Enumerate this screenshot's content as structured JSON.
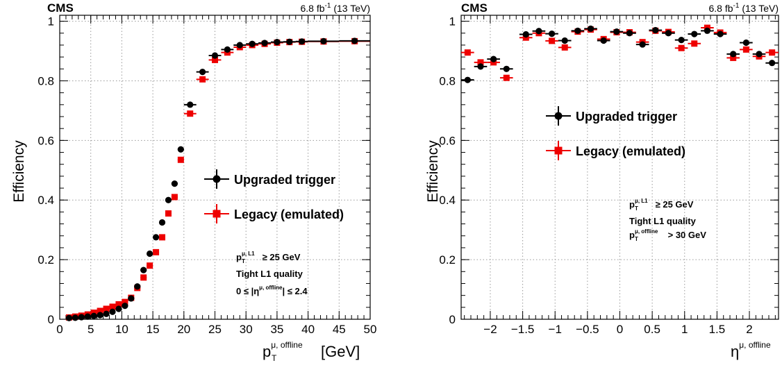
{
  "colors": {
    "upgraded": "#000000",
    "legacy": "#ee0000",
    "grid": "#999999",
    "frame": "#000000"
  },
  "chart_data": [
    {
      "type": "scatter",
      "experiment": "CMS",
      "lumi": "6.8 fb",
      "lumi_exp": "-1",
      "energy": "(13 TeV)",
      "xlabel": {
        "main": "p",
        "sup": "μ, offline",
        "sub": "T",
        "unit": "[GeV]"
      },
      "ylabel": "Efficiency",
      "xlim": [
        0,
        50
      ],
      "ylim": [
        0,
        1.02
      ],
      "xticks": [
        0,
        5,
        10,
        15,
        20,
        25,
        30,
        35,
        40,
        45,
        50
      ],
      "yticks": [
        0,
        0.2,
        0.4,
        0.6,
        0.8,
        1
      ],
      "ytick_labels": [
        "0",
        "0.2",
        "0.4",
        "0.6",
        "0.8",
        "1"
      ],
      "grid": true,
      "legend_position": "right-middle",
      "series": [
        {
          "name": "Upgraded trigger",
          "marker": "circle",
          "x": [
            1.5,
            2.5,
            3.5,
            4.5,
            5.5,
            6.5,
            7.5,
            8.5,
            9.5,
            10.5,
            11.5,
            12.5,
            13.5,
            14.5,
            15.5,
            16.5,
            17.5,
            18.5,
            19.5,
            21,
            23,
            25,
            27,
            29,
            31,
            33,
            35,
            37,
            39,
            42.5,
            47.5
          ],
          "xerr": [
            0.5,
            0.5,
            0.5,
            0.5,
            0.5,
            0.5,
            0.5,
            0.5,
            0.5,
            0.5,
            0.5,
            0.5,
            0.5,
            0.5,
            0.5,
            0.5,
            0.5,
            0.5,
            0.5,
            1,
            1,
            1,
            1,
            1,
            1,
            1,
            1,
            1,
            1,
            2.5,
            2.5
          ],
          "y": [
            0.004,
            0.005,
            0.007,
            0.009,
            0.011,
            0.014,
            0.018,
            0.025,
            0.035,
            0.045,
            0.07,
            0.11,
            0.165,
            0.22,
            0.275,
            0.325,
            0.4,
            0.455,
            0.57,
            0.72,
            0.83,
            0.885,
            0.905,
            0.92,
            0.924,
            0.927,
            0.93,
            0.931,
            0.932,
            0.933,
            0.934
          ]
        },
        {
          "name": "Legacy (emulated)",
          "marker": "square",
          "x": [
            1.5,
            2.5,
            3.5,
            4.5,
            5.5,
            6.5,
            7.5,
            8.5,
            9.5,
            10.5,
            11.5,
            12.5,
            13.5,
            14.5,
            15.5,
            16.5,
            17.5,
            18.5,
            19.5,
            21,
            23,
            25,
            27,
            29,
            31,
            33,
            35,
            37,
            39,
            42.5,
            47.5
          ],
          "xerr": [
            0.5,
            0.5,
            0.5,
            0.5,
            0.5,
            0.5,
            0.5,
            0.5,
            0.5,
            0.5,
            0.5,
            0.5,
            0.5,
            0.5,
            0.5,
            0.5,
            0.5,
            0.5,
            0.5,
            1,
            1,
            1,
            1,
            1,
            1,
            1,
            1,
            1,
            1,
            2.5,
            2.5
          ],
          "y": [
            0.006,
            0.009,
            0.012,
            0.016,
            0.022,
            0.028,
            0.035,
            0.042,
            0.05,
            0.058,
            0.072,
            0.105,
            0.14,
            0.18,
            0.225,
            0.275,
            0.355,
            0.41,
            0.535,
            0.69,
            0.805,
            0.87,
            0.895,
            0.913,
            0.92,
            0.924,
            0.928,
            0.93,
            0.931,
            0.932,
            0.933
          ]
        }
      ],
      "annotation": {
        "line1": {
          "main": "p",
          "sup": "μ, L1",
          "sub": "T",
          "rest": " ≥ 25 GeV"
        },
        "line2": "Tight L1 quality",
        "line3": {
          "pre": "0 ≤ |η",
          "sup": "μ, offline",
          "post": "| ≤ 2.4"
        }
      }
    },
    {
      "type": "scatter",
      "experiment": "CMS",
      "lumi": "6.8 fb",
      "lumi_exp": "-1",
      "energy": "(13 TeV)",
      "xlabel": {
        "main": "η",
        "sup": "μ, offline"
      },
      "ylabel": "Efficiency",
      "xlim": [
        -2.45,
        2.45
      ],
      "ylim": [
        0,
        1.02
      ],
      "xticks": [
        -2,
        -1.5,
        -1,
        -0.5,
        0,
        0.5,
        1,
        1.5,
        2
      ],
      "xtick_labels": [
        "−2",
        "−1.5",
        "−1",
        "−0.5",
        "0",
        "0.5",
        "1",
        "1.5",
        "2"
      ],
      "yticks": [
        0,
        0.2,
        0.4,
        0.6,
        0.8,
        1
      ],
      "ytick_labels": [
        "0",
        "0.2",
        "0.4",
        "0.6",
        "0.8",
        "1"
      ],
      "grid": true,
      "legend_position": "top-center",
      "series": [
        {
          "name": "Upgraded trigger",
          "marker": "circle",
          "x": [
            -2.35,
            -2.15,
            -1.95,
            -1.75,
            -1.45,
            -1.25,
            -1.05,
            -0.85,
            -0.65,
            -0.45,
            -0.25,
            -0.05,
            0.15,
            0.35,
            0.55,
            0.75,
            0.95,
            1.15,
            1.35,
            1.55,
            1.75,
            1.95,
            2.15,
            2.35
          ],
          "xerr": [
            0.1,
            0.1,
            0.1,
            0.1,
            0.1,
            0.1,
            0.1,
            0.1,
            0.1,
            0.1,
            0.1,
            0.1,
            0.1,
            0.1,
            0.1,
            0.1,
            0.1,
            0.1,
            0.1,
            0.1,
            0.1,
            0.1,
            0.1,
            0.1
          ],
          "y": [
            0.803,
            0.848,
            0.873,
            0.84,
            0.956,
            0.967,
            0.958,
            0.935,
            0.968,
            0.975,
            0.935,
            0.965,
            0.96,
            0.922,
            0.97,
            0.96,
            0.937,
            0.957,
            0.968,
            0.957,
            0.89,
            0.928,
            0.89,
            0.86
          ]
        },
        {
          "name": "Legacy (emulated)",
          "marker": "square",
          "x": [
            -2.35,
            -2.15,
            -1.95,
            -1.75,
            -1.45,
            -1.25,
            -1.05,
            -0.85,
            -0.65,
            -0.45,
            -0.25,
            -0.05,
            0.15,
            0.35,
            0.55,
            0.75,
            0.95,
            1.15,
            1.35,
            1.55,
            1.75,
            1.95,
            2.15,
            2.35
          ],
          "xerr": [
            0.1,
            0.1,
            0.1,
            0.1,
            0.1,
            0.1,
            0.1,
            0.1,
            0.1,
            0.1,
            0.1,
            0.1,
            0.1,
            0.1,
            0.1,
            0.1,
            0.1,
            0.1,
            0.1,
            0.1,
            0.1,
            0.1,
            0.1,
            0.1
          ],
          "y": [
            0.895,
            0.862,
            0.862,
            0.81,
            0.945,
            0.96,
            0.934,
            0.912,
            0.965,
            0.972,
            0.94,
            0.963,
            0.963,
            0.93,
            0.968,
            0.964,
            0.91,
            0.925,
            0.978,
            0.962,
            0.877,
            0.905,
            0.882,
            0.895
          ]
        }
      ],
      "annotation": {
        "line1": {
          "main": "p",
          "sup": "μ, L1",
          "sub": "T",
          "rest": " ≥ 25 GeV"
        },
        "line2": "Tight L1 quality",
        "line3": {
          "main": "p",
          "sup": "μ, offline",
          "sub": "T",
          "rest": " > 30 GeV"
        }
      }
    }
  ]
}
